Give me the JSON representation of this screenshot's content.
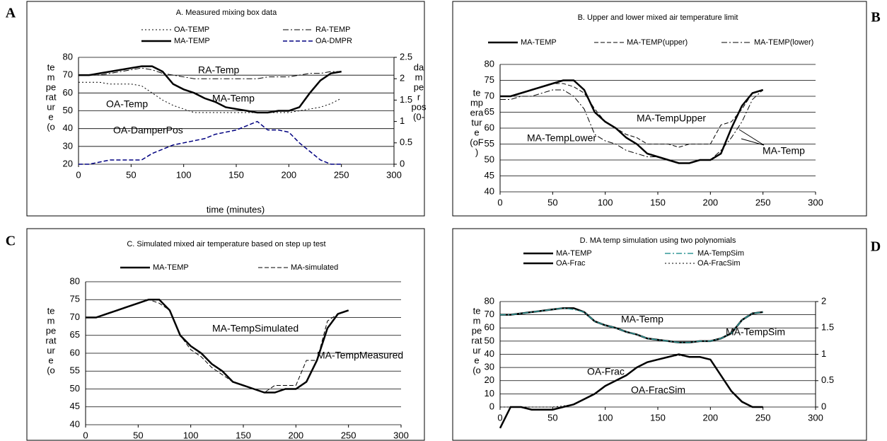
{
  "chart_data": [
    {
      "type": "line",
      "panel_label": "A",
      "title": "A.  Measured mixing box data",
      "ylabel_lines": [
        "te",
        "m",
        "pe",
        "rat",
        "ur",
        "e",
        "(o"
      ],
      "y2label_lines": [
        "da",
        "m",
        "pe",
        "r",
        "pos",
        "(0-"
      ],
      "xlabel": "time (minutes)",
      "x": [
        0,
        10,
        20,
        30,
        40,
        50,
        60,
        70,
        80,
        90,
        100,
        110,
        120,
        130,
        140,
        150,
        160,
        170,
        180,
        190,
        200,
        210,
        220,
        230,
        240,
        250
      ],
      "xlim": [
        0,
        300
      ],
      "xticks": [
        0,
        50,
        100,
        150,
        200,
        250,
        300
      ],
      "ylim": [
        20,
        80
      ],
      "yticks": [
        20,
        30,
        40,
        50,
        60,
        70,
        80
      ],
      "y2lim": [
        0,
        2.5
      ],
      "y2ticks": [
        0,
        0.5,
        1,
        1.5,
        2,
        2.5
      ],
      "grid": true,
      "annotations": [
        "RA-Temp",
        "MA-Temp",
        "OA-Temp",
        "OA-DamperPos"
      ],
      "series": [
        {
          "name": "OA-TEMP",
          "color": "#000000",
          "style": "dotted",
          "width": 1,
          "values": [
            66,
            66,
            66,
            65,
            65,
            65,
            64,
            60,
            56,
            53,
            51,
            49,
            49,
            49,
            49,
            49,
            49,
            49,
            49,
            49,
            49,
            50,
            51,
            52,
            54,
            57
          ]
        },
        {
          "name": "RA-TEMP",
          "color": "#000000",
          "style": "dashdot",
          "width": 1,
          "values": [
            70,
            70,
            70,
            71,
            72,
            73,
            74,
            73,
            71,
            70,
            69,
            68,
            68,
            68,
            68,
            68,
            68,
            68,
            69,
            69,
            69,
            70,
            71,
            71,
            72,
            72
          ]
        },
        {
          "name": "MA-TEMP",
          "color": "#000000",
          "style": "solid",
          "width": 2.5,
          "values": [
            70,
            70,
            71,
            72,
            73,
            74,
            75,
            75,
            72,
            65,
            62,
            60,
            57,
            55,
            52,
            51,
            50,
            49,
            49,
            50,
            50,
            52,
            60,
            67,
            71,
            72
          ]
        },
        {
          "name": "OA-DMPR",
          "color": "#000080",
          "style": "dashed",
          "width": 1.5,
          "axis": "y2",
          "values": [
            0,
            0,
            0.05,
            0.1,
            0.1,
            0.1,
            0.1,
            0.25,
            0.35,
            0.45,
            0.5,
            0.55,
            0.6,
            0.7,
            0.75,
            0.8,
            0.9,
            1.0,
            0.8,
            0.8,
            0.75,
            0.5,
            0.3,
            0.1,
            0,
            0
          ]
        }
      ]
    },
    {
      "type": "line",
      "panel_label": "B",
      "title": "B.  Upper and lower mixed air temperature limit",
      "ylabel_lines": [
        "te",
        "mp",
        "era",
        "tur",
        "e",
        "(oF",
        ")"
      ],
      "x": [
        0,
        10,
        20,
        30,
        40,
        50,
        60,
        70,
        80,
        90,
        100,
        110,
        120,
        130,
        140,
        150,
        160,
        170,
        180,
        190,
        200,
        210,
        220,
        230,
        240,
        250
      ],
      "xlim": [
        0,
        300
      ],
      "xticks": [
        0,
        50,
        100,
        150,
        200,
        250,
        300
      ],
      "ylim": [
        40,
        80
      ],
      "yticks": [
        40,
        45,
        50,
        55,
        60,
        65,
        70,
        75,
        80
      ],
      "grid": true,
      "annotations": [
        "MA-TempUpper",
        "MA-TempLower",
        "MA-Temp"
      ],
      "series": [
        {
          "name": "MA-TEMP",
          "color": "#000000",
          "style": "solid",
          "width": 2.5,
          "values": [
            70,
            70,
            71,
            72,
            73,
            74,
            75,
            75,
            72,
            65,
            62,
            60,
            57,
            55,
            52,
            51,
            50,
            49,
            49,
            50,
            50,
            52,
            60,
            67,
            71,
            72
          ]
        },
        {
          "name": "MA-TEMP(upper)",
          "color": "#000000",
          "style": "dashed",
          "width": 1,
          "values": [
            70,
            70,
            71,
            72,
            73,
            74,
            74,
            73,
            71,
            66,
            62,
            60,
            58,
            57,
            55,
            55,
            55,
            54,
            55,
            55,
            55,
            61,
            62,
            66,
            71,
            72
          ]
        },
        {
          "name": "MA-TEMP(lower)",
          "color": "#000000",
          "style": "dashdot",
          "width": 1,
          "values": [
            69,
            69,
            70,
            70,
            71,
            72,
            72,
            70,
            66,
            58,
            56,
            55,
            53,
            52,
            51,
            51,
            50,
            49,
            49,
            50,
            50,
            53,
            57,
            62,
            69,
            72
          ]
        }
      ]
    },
    {
      "type": "line",
      "panel_label": "C",
      "title": "C. Simulated mixed air temperature based on step up test",
      "ylabel_lines": [
        "te",
        "m",
        "pe",
        "rat",
        "ur",
        "e",
        "(o"
      ],
      "x": [
        0,
        10,
        20,
        30,
        40,
        50,
        60,
        70,
        80,
        90,
        100,
        110,
        120,
        130,
        140,
        150,
        160,
        170,
        180,
        190,
        200,
        210,
        220,
        230,
        240,
        250
      ],
      "xlim": [
        0,
        300
      ],
      "xticks": [
        0,
        50,
        100,
        150,
        200,
        250,
        300
      ],
      "ylim": [
        40,
        80
      ],
      "yticks": [
        40,
        45,
        50,
        55,
        60,
        65,
        70,
        75,
        80
      ],
      "grid": true,
      "annotations": [
        "MA-TempSimulated",
        "MA-TempMeasured"
      ],
      "series": [
        {
          "name": "MA-TEMP",
          "color": "#000000",
          "style": "solid",
          "width": 2.5,
          "values": [
            70,
            70,
            71,
            72,
            73,
            74,
            75,
            75,
            72,
            65,
            62,
            60,
            57,
            55,
            52,
            51,
            50,
            49,
            49,
            50,
            50,
            52,
            58,
            67,
            71,
            72
          ]
        },
        {
          "name": "MA-simulated",
          "color": "#000000",
          "style": "dashed",
          "width": 1,
          "values": [
            70,
            70,
            71,
            72,
            73,
            74,
            75,
            74,
            72,
            65,
            61,
            59,
            56,
            54,
            52,
            51,
            50,
            49,
            51,
            51,
            51,
            58,
            58,
            69,
            71,
            72
          ]
        }
      ]
    },
    {
      "type": "line",
      "panel_label": "D",
      "title": "D.  MA temp simulation using two polynomials",
      "ylabel_lines": [
        "te",
        "m",
        "pe",
        "rat",
        "ur",
        "e",
        "(o"
      ],
      "x": [
        0,
        10,
        20,
        30,
        40,
        50,
        60,
        70,
        80,
        90,
        100,
        110,
        120,
        130,
        140,
        150,
        160,
        170,
        180,
        190,
        200,
        210,
        220,
        230,
        240,
        250
      ],
      "xlim": [
        0,
        300
      ],
      "xticks": [
        0,
        50,
        100,
        150,
        200,
        250,
        300
      ],
      "ylim": [
        0,
        80
      ],
      "yticks": [
        0,
        10,
        20,
        30,
        40,
        50,
        60,
        70,
        80
      ],
      "y2lim": [
        0,
        2
      ],
      "y2ticks": [
        0,
        0.5,
        1,
        1.5,
        2
      ],
      "grid": true,
      "annotations": [
        "MA-Temp",
        "MA-TempSim",
        "OA-Frac",
        "OA-FracSim"
      ],
      "series": [
        {
          "name": "MA-TEMP",
          "color": "#000000",
          "style": "solid",
          "width": 2.5,
          "values": [
            70,
            70,
            71,
            72,
            73,
            74,
            75,
            75,
            72,
            65,
            62,
            60,
            57,
            55,
            52,
            51,
            50,
            49,
            49,
            50,
            50,
            52,
            56,
            66,
            71,
            72
          ]
        },
        {
          "name": "MA-TempSim",
          "color": "#339999",
          "style": "dashdot",
          "width": 1.5,
          "values": [
            70,
            70,
            71,
            72,
            73,
            74,
            75,
            74,
            72,
            65,
            62,
            60,
            57,
            55,
            52,
            51,
            50,
            49,
            49,
            50,
            50,
            52,
            56,
            66,
            71,
            72
          ]
        },
        {
          "name": "OA-Frac",
          "color": "#000000",
          "style": "solid",
          "width": 2.5,
          "axis": "y2",
          "values": [
            -0.4,
            0,
            0,
            -0.05,
            -0.05,
            -0.05,
            0,
            0.05,
            0.15,
            0.25,
            0.4,
            0.5,
            0.6,
            0.75,
            0.85,
            0.9,
            0.95,
            1.0,
            0.95,
            0.95,
            0.9,
            0.6,
            0.3,
            0.1,
            0,
            0
          ]
        },
        {
          "name": "OA-FracSim",
          "color": "#000000",
          "style": "dotted",
          "width": 1,
          "axis": "y2",
          "values": [
            0,
            0,
            0,
            0,
            0,
            0,
            0.02,
            0.05,
            0.15,
            0.25,
            0.4,
            0.5,
            0.6,
            0.75,
            0.85,
            0.9,
            0.95,
            0.98,
            0.95,
            0.95,
            0.9,
            0.6,
            0.3,
            0.1,
            0,
            0
          ]
        }
      ]
    }
  ]
}
